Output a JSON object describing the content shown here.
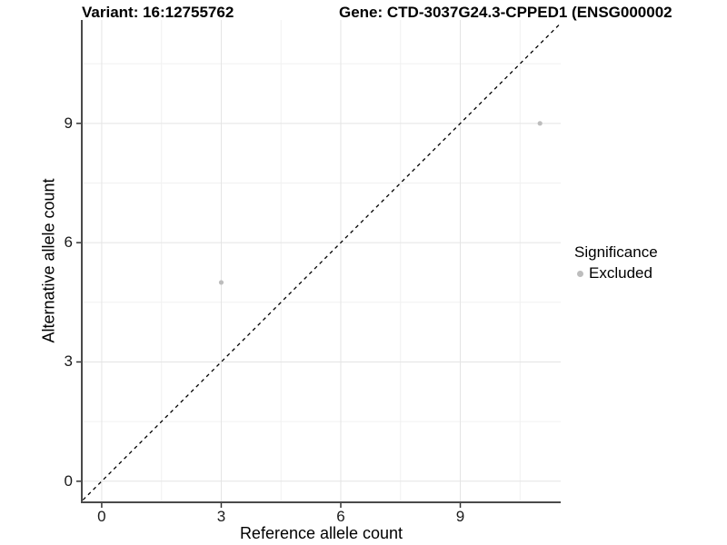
{
  "chart_data": {
    "type": "scatter",
    "title_left": "Variant: 16:12755762",
    "title_right": "Gene: CTD-3037G24.3-CPPED1 (ENSG000002",
    "xlabel": "Reference allele count",
    "ylabel": "Alternative allele count",
    "xlim": [
      -0.5,
      11.52
    ],
    "ylim": [
      -0.53,
      11.6
    ],
    "x_ticks": [
      0,
      3,
      6,
      9
    ],
    "y_ticks": [
      0,
      3,
      6,
      9
    ],
    "minor_x_ticks": [
      1.5,
      4.5,
      7.5,
      10.5
    ],
    "minor_y_ticks": [
      1.5,
      4.5,
      7.5,
      10.5
    ],
    "grid": true,
    "legend": {
      "title": "Significance",
      "position": "right",
      "entries": [
        {
          "label": "Excluded",
          "color": "#bdbdbd"
        }
      ]
    },
    "series": [
      {
        "name": "Excluded",
        "color": "#bdbdbd",
        "points": [
          {
            "x": 3,
            "y": 5
          },
          {
            "x": 11,
            "y": 9
          }
        ]
      }
    ],
    "identity_line": {
      "style": "dashed",
      "color": "#000000",
      "from": -0.6,
      "to": 11.7
    }
  },
  "colors": {
    "background": "#ffffff",
    "point": "#bdbdbd",
    "axis_line": "#4a4a4a",
    "tick_mark": "#333333",
    "grid_major": "#e4e4e4",
    "grid_minor": "#f1f1f1",
    "identity_line": "#000000"
  }
}
